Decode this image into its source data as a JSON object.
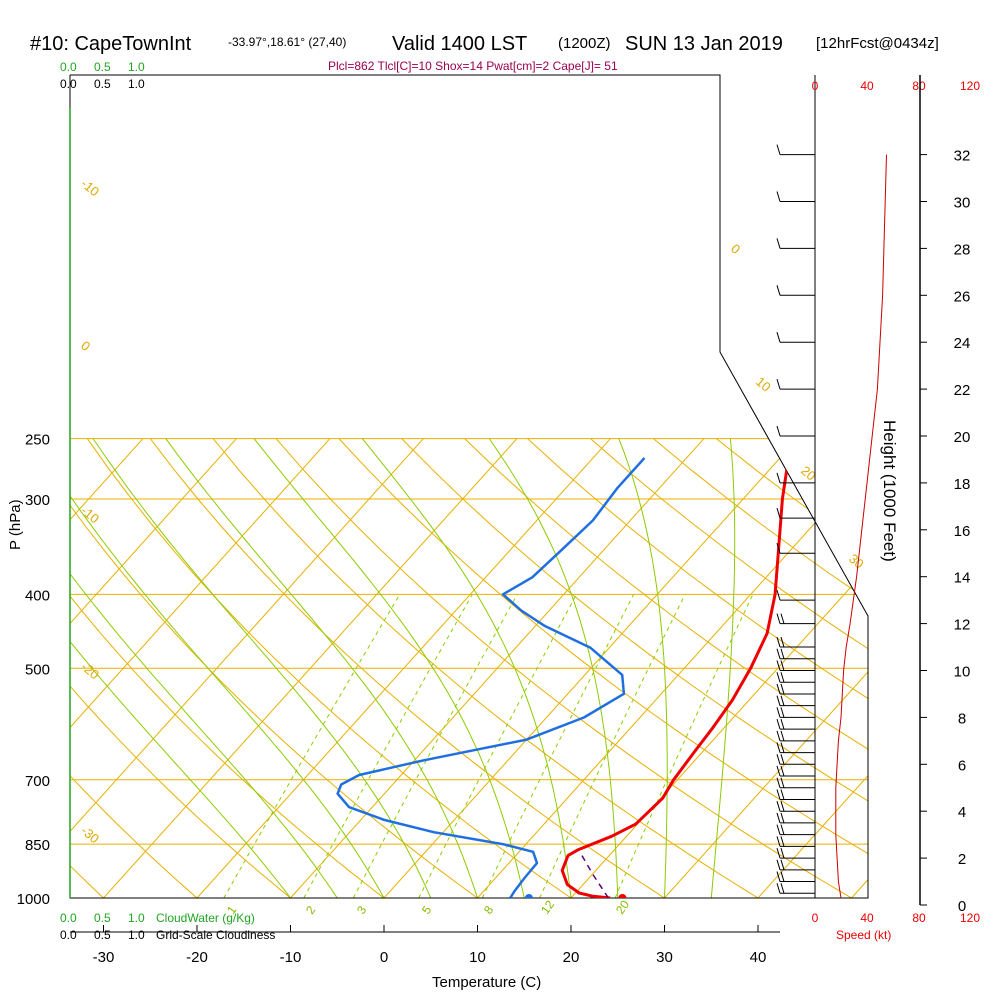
{
  "header": {
    "station": "#10: CapeTownInt",
    "coords": "-33.97°,18.61° (27,40)",
    "valid": "Valid 1400 LST",
    "utc": "(1200Z)",
    "date": "SUN 13 Jan 2019",
    "forecast": "[12hrFcst@0434z]",
    "indices": "Plcl=862 Tlcl[C]=10 Shox=14 Pwat[cm]=2 Cape[J]= 51"
  },
  "scales": {
    "cloudwater_top": [
      "0.0",
      "0.5",
      "1.0"
    ],
    "cloudiness_top": [
      "0.0",
      "0.5",
      "1.0"
    ],
    "cloudwater_bottom": [
      "0.0",
      "0.5",
      "1.0"
    ],
    "cloudwater_label": "CloudWater (g/Kg)",
    "cloudiness_bottom": [
      "0.0",
      "0.5",
      "1.0"
    ],
    "cloudiness_label": "Grid-Scale Cloudiness",
    "speed_top": [
      "0",
      "40",
      "80",
      "120"
    ],
    "speed_bottom": [
      "0",
      "40",
      "80",
      "120"
    ],
    "speed_label": "Speed (kt)"
  },
  "colors": {
    "temperature": "#ee0000",
    "dewpoint": "#1f6fe0",
    "isotherm": "#e8b000",
    "dry_adiabat": "#e8b000",
    "moist_adiabat": "#8ccc00",
    "mixing_ratio": "#8ccc00",
    "parcel": "#5a0070",
    "speed": "#cc0000",
    "cloudwater": "#1fa51f"
  },
  "chart_data": {
    "type": "line",
    "title": "",
    "xlabel": "Temperature (C)",
    "ylabel": "P (hPa)",
    "y2label": "Height (1000 Feet)",
    "xticks": [
      -30,
      -20,
      -10,
      0,
      10,
      20,
      30,
      40
    ],
    "xlim": [
      -30,
      44
    ],
    "pressure_ticks": [
      250,
      300,
      400,
      500,
      700,
      850,
      1000
    ],
    "height_ticks": [
      0,
      2,
      4,
      6,
      8,
      10,
      12,
      14,
      16,
      18,
      20,
      22,
      24,
      26,
      28,
      30,
      32
    ],
    "series": [
      {
        "name": "Temperature",
        "points": [
          [
            1000,
            24.2
          ],
          [
            995,
            22.2
          ],
          [
            985,
            20.4
          ],
          [
            960,
            18.3
          ],
          [
            920,
            16.4
          ],
          [
            880,
            15.6
          ],
          [
            865,
            16.1
          ],
          [
            830,
            18.4
          ],
          [
            800,
            19.8
          ],
          [
            740,
            20.2
          ],
          [
            700,
            19.6
          ],
          [
            640,
            19.1
          ],
          [
            600,
            18.8
          ],
          [
            550,
            18.2
          ],
          [
            500,
            17.1
          ],
          [
            450,
            15.5
          ],
          [
            400,
            12.6
          ],
          [
            350,
            8.7
          ],
          [
            300,
            4.2
          ],
          [
            265,
            0.9
          ]
        ]
      },
      {
        "name": "Dewpoint",
        "points": [
          [
            1000,
            13.5
          ],
          [
            980,
            13.3
          ],
          [
            940,
            13.1
          ],
          [
            900,
            13.0
          ],
          [
            870,
            11.5
          ],
          [
            850,
            7.5
          ],
          [
            820,
            -1.0
          ],
          [
            790,
            -7.5
          ],
          [
            760,
            -12.5
          ],
          [
            730,
            -15.0
          ],
          [
            710,
            -15.5
          ],
          [
            690,
            -14.5
          ],
          [
            660,
            -9.0
          ],
          [
            620,
            0.0
          ],
          [
            580,
            4.0
          ],
          [
            540,
            6.0
          ],
          [
            510,
            4.0
          ],
          [
            470,
            -2.0
          ],
          [
            440,
            -9.0
          ],
          [
            420,
            -13.0
          ],
          [
            400,
            -16.5
          ],
          [
            380,
            -15.0
          ],
          [
            350,
            -14.5
          ],
          [
            320,
            -14.0
          ],
          [
            290,
            -14.5
          ],
          [
            265,
            -14.5
          ]
        ]
      },
      {
        "name": "Parcel",
        "points": [
          [
            1000,
            24.0
          ],
          [
            930,
            20.0
          ],
          [
            870,
            16.5
          ]
        ]
      }
    ],
    "surface": {
      "temperature": 25.5,
      "dewpoint": 15.5
    },
    "isotherm_labels": [
      "-10",
      "0",
      "-10",
      "-20",
      "-30",
      "0",
      "10",
      "20",
      "30"
    ],
    "mixing_ratio_labels": [
      "1",
      "2",
      "3",
      "5",
      "8",
      "12",
      "20"
    ],
    "wind": {
      "heights_kft": [
        0.5,
        1,
        1.5,
        2,
        2.5,
        3,
        3.5,
        4,
        4.5,
        5,
        5.5,
        6,
        6.5,
        7,
        7.5,
        8,
        8.5,
        9,
        9.5,
        10,
        10.5,
        11,
        12,
        13,
        15,
        16.5,
        18,
        20,
        22,
        24,
        26,
        28,
        30,
        32
      ],
      "speed_kt": [
        18,
        20,
        22,
        22,
        22,
        22,
        22,
        22,
        20,
        18,
        18,
        18,
        18,
        18,
        18,
        18,
        20,
        20,
        22,
        20,
        20,
        18,
        15,
        12,
        10,
        10,
        10,
        10,
        10,
        10,
        10,
        10,
        10,
        10
      ]
    },
    "speed_profile": [
      [
        0.3,
        20
      ],
      [
        1,
        18
      ],
      [
        2,
        17
      ],
      [
        3,
        16
      ],
      [
        4,
        16
      ],
      [
        5,
        16
      ],
      [
        6,
        17
      ],
      [
        7,
        18
      ],
      [
        8,
        20
      ],
      [
        9,
        21
      ],
      [
        10,
        22
      ],
      [
        11,
        24
      ],
      [
        12,
        27
      ],
      [
        14,
        32
      ],
      [
        16,
        36
      ],
      [
        18,
        40
      ],
      [
        20,
        44
      ],
      [
        22,
        48
      ],
      [
        24,
        50
      ],
      [
        26,
        52
      ],
      [
        28,
        53
      ],
      [
        30,
        54
      ],
      [
        32,
        55
      ]
    ]
  }
}
